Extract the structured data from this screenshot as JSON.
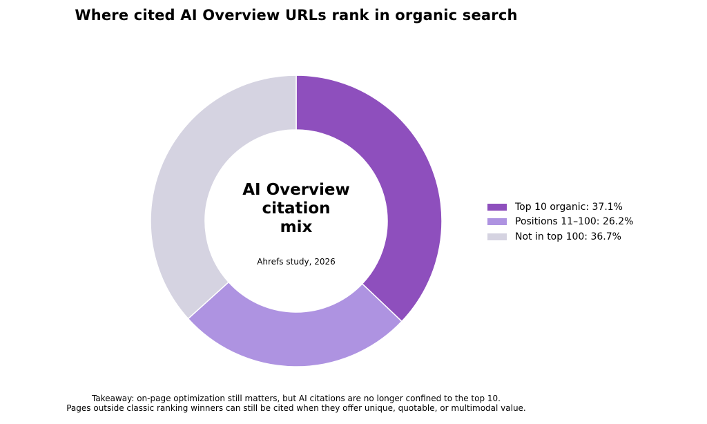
{
  "chart_data": {
    "type": "pie",
    "title": "Where cited AI Overview URLs rank in organic search",
    "center_label": "AI Overview\ncitation\nmix",
    "center_sublabel": "Ahrefs study, 2026",
    "categories": [
      "Top 10 organic",
      "Positions 11–100",
      "Not in top 100"
    ],
    "values": [
      37.1,
      26.2,
      36.7
    ],
    "unit": "%",
    "colors": [
      "#8e4fbd",
      "#ae93e1",
      "#d5d3e1"
    ],
    "legend_labels": [
      "Top 10 organic: 37.1%",
      "Positions 11–100: 26.2%",
      "Not in top 100: 36.7%"
    ],
    "legend_placement": "right",
    "donut": true
  },
  "footnote": {
    "line1": "Takeaway: on-page optimization still matters, but AI citations are no longer confined to the top 10.",
    "line2": "Pages outside classic ranking winners can still be cited when they offer unique, quotable, or multimodal value."
  }
}
